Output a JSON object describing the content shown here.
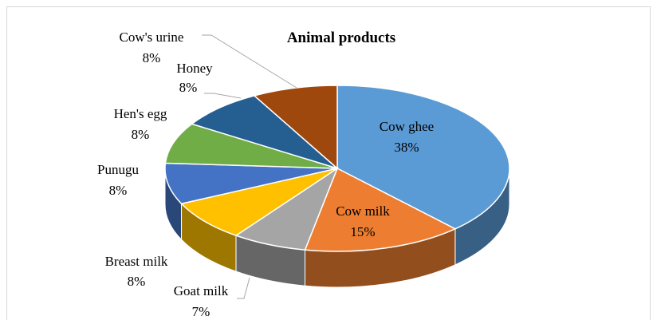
{
  "chart_data": {
    "type": "pie",
    "title": "Animal products",
    "categories": [
      "Cow ghee",
      "Cow milk",
      "Goat milk",
      "Breast milk",
      "Punugu",
      "Hen's egg",
      "Honey",
      "Cow's urine"
    ],
    "values": [
      38,
      15,
      7,
      8,
      8,
      8,
      8,
      8
    ],
    "value_labels": [
      "38%",
      "15%",
      "7%",
      "8%",
      "8%",
      "8%",
      "8%",
      "8%"
    ],
    "colors": [
      "#5b9bd5",
      "#ed7d31",
      "#a5a5a5",
      "#ffc000",
      "#4472c4",
      "#70ad47",
      "#255e91",
      "#9e480e"
    ],
    "style": "3d"
  }
}
